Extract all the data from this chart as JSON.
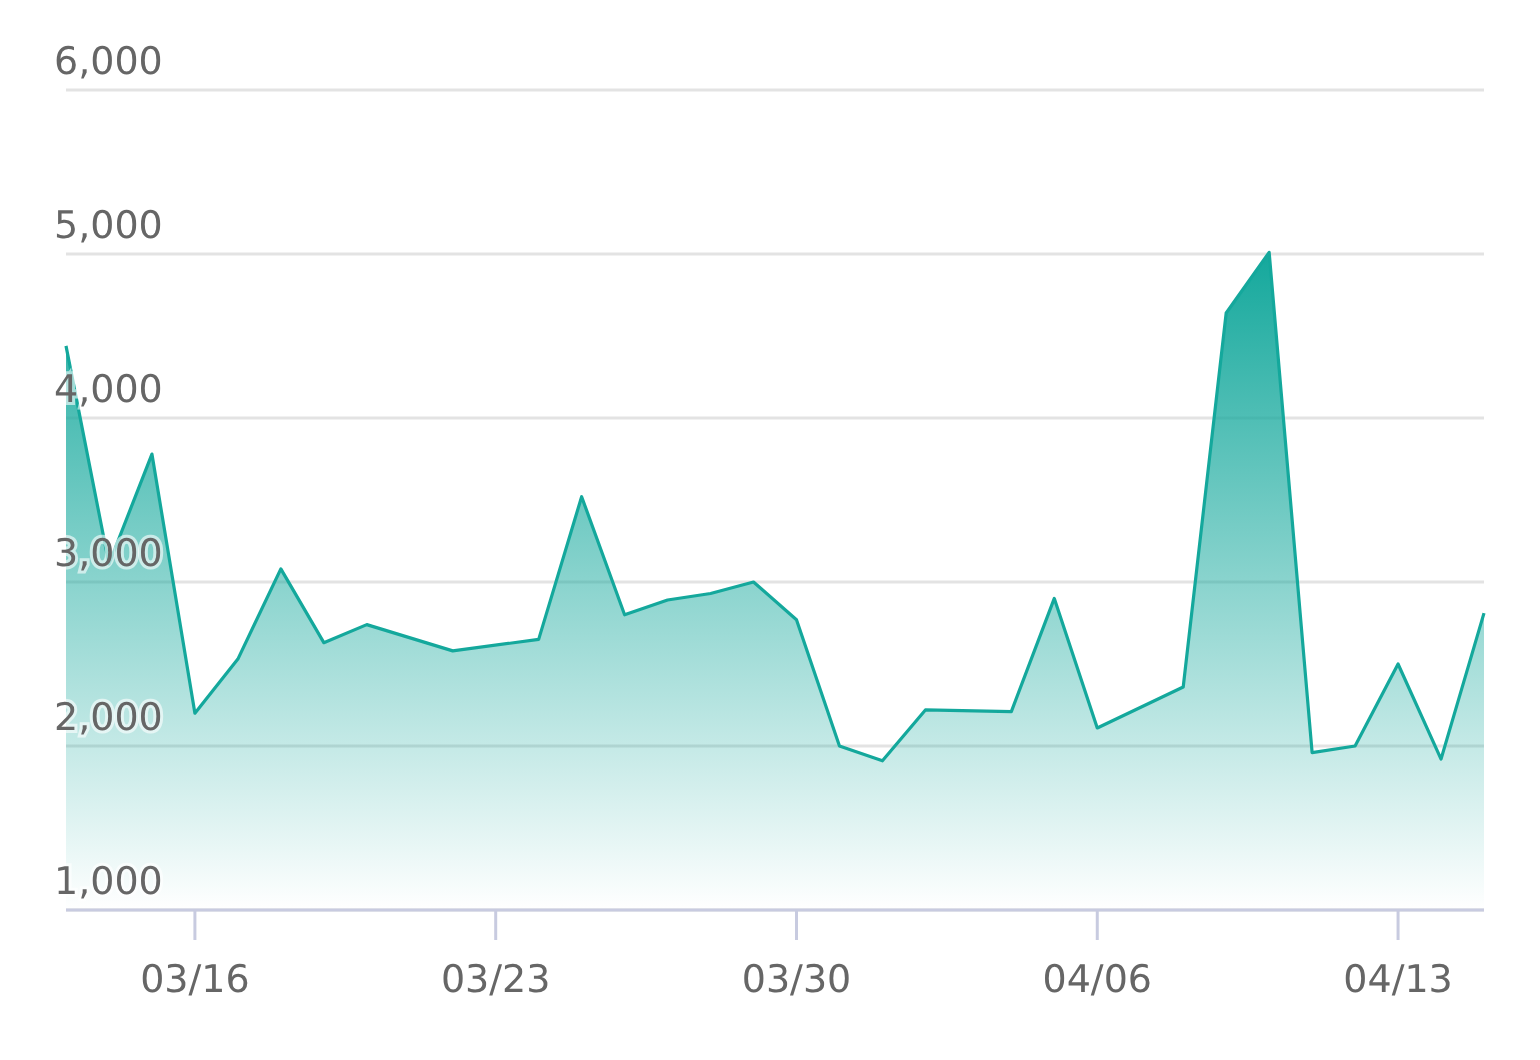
{
  "chart_data": {
    "type": "area",
    "x": [
      "--03-13",
      "--03-14",
      "--03-15",
      "--03-16",
      "--03-17",
      "--03-18",
      "--03-19",
      "--03-20",
      "--03-22",
      "--03-24",
      "--03-25",
      "--03-26",
      "--03-27",
      "--03-28",
      "--03-29",
      "--03-30",
      "--03-31",
      "--04-01",
      "--04-02",
      "--04-04",
      "--04-05",
      "--04-06",
      "--04-08",
      "--04-09",
      "--04-10",
      "--04-11",
      "--04-12",
      "--04-13",
      "--04-14",
      "--04-15"
    ],
    "series": [
      {
        "color": "#14a89c",
        "values": [
          4440,
          3110,
          3780,
          2200,
          2530,
          3080,
          2630,
          2740,
          2580,
          2650,
          3520,
          2800,
          2890,
          2930,
          3000,
          2770,
          2000,
          1910,
          2220,
          2210,
          2900,
          2110,
          2360,
          4640,
          5010,
          1960,
          2000,
          2500,
          1920,
          2810
        ]
      }
    ],
    "xlim": [
      "--03-13",
      "--04-15"
    ],
    "xticks": [
      {
        "value": "--03-16",
        "label": "03/16"
      },
      {
        "value": "--03-23",
        "label": "03/23"
      },
      {
        "value": "--03-30",
        "label": "03/30"
      },
      {
        "value": "--04-06",
        "label": "04/06"
      },
      {
        "value": "--04-13",
        "label": "04/13"
      }
    ],
    "ylim": [
      1000,
      6000
    ],
    "yticks": [
      {
        "value": 1000,
        "label": "1,000"
      },
      {
        "value": 2000,
        "label": "2,000"
      },
      {
        "value": 3000,
        "label": "3,000"
      },
      {
        "value": 4000,
        "label": "4,000"
      },
      {
        "value": 5000,
        "label": "5,000"
      },
      {
        "value": 6000,
        "label": "6,000"
      }
    ],
    "grid": "y"
  }
}
